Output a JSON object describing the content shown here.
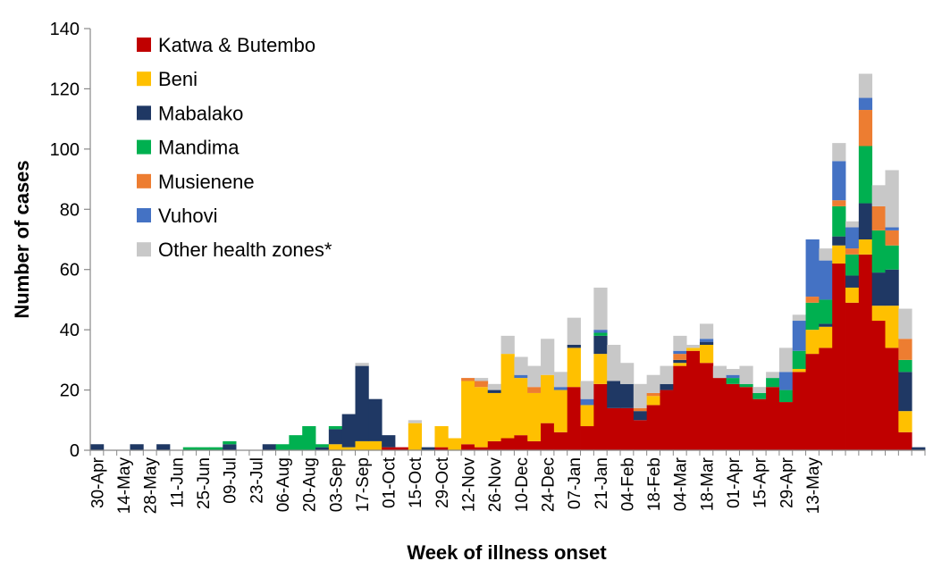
{
  "chart_data": {
    "type": "bar",
    "stacked": true,
    "xlabel": "Week of illness onset",
    "ylabel": "Number of cases",
    "ylim": [
      0,
      140
    ],
    "yticks": [
      0,
      20,
      40,
      60,
      80,
      100,
      120,
      140
    ],
    "grid": false,
    "legend_position": "top-left",
    "x_tick_labels": [
      "30-Apr",
      "14-May",
      "28-May",
      "11-Jun",
      "25-Jun",
      "09-Jul",
      "23-Jul",
      "06-Aug",
      "20-Aug",
      "03-Sep",
      "17-Sep",
      "01-Oct",
      "15-Oct",
      "29-Oct",
      "12-Nov",
      "26-Nov",
      "10-Dec",
      "24-Dec",
      "07-Jan",
      "21-Jan",
      "04-Feb",
      "18-Feb",
      "04-Mar",
      "18-Mar",
      "01-Apr",
      "15-Apr",
      "29-Apr",
      "13-May"
    ],
    "series": [
      {
        "name": "Katwa & Butembo",
        "color": "#c00000",
        "values": [
          0,
          0,
          0,
          0,
          0,
          0,
          0,
          0,
          0,
          0,
          0,
          0,
          0,
          0,
          0,
          0,
          0,
          0,
          0,
          0,
          0,
          0,
          1,
          1,
          0,
          0,
          1,
          0,
          2,
          1,
          3,
          4,
          5,
          3,
          9,
          6,
          21,
          8,
          22,
          14,
          14,
          10,
          15,
          20,
          28,
          33,
          29,
          24,
          22,
          21,
          17,
          21,
          16,
          26,
          32,
          34,
          62,
          49,
          65,
          43,
          34,
          6,
          0
        ]
      },
      {
        "name": "Beni",
        "color": "#ffc000",
        "values": [
          0,
          0,
          0,
          0,
          0,
          0,
          0,
          0,
          0,
          0,
          0,
          0,
          0,
          0,
          0,
          0,
          0,
          0,
          2,
          1,
          3,
          3,
          0,
          0,
          9,
          0,
          7,
          4,
          21,
          20,
          16,
          28,
          19,
          16,
          16,
          14,
          13,
          7,
          10,
          0,
          0,
          0,
          3,
          0,
          1,
          1,
          6,
          0,
          0,
          0,
          0,
          0,
          0,
          1,
          8,
          7,
          6,
          5,
          5,
          5,
          14,
          7,
          0
        ]
      },
      {
        "name": "Mabalako",
        "color": "#1f3864",
        "values": [
          2,
          0,
          0,
          2,
          0,
          2,
          0,
          0,
          0,
          0,
          2,
          0,
          0,
          2,
          0,
          0,
          0,
          1,
          5,
          11,
          25,
          14,
          4,
          0,
          0,
          1,
          0,
          0,
          0,
          0,
          1,
          0,
          0,
          0,
          0,
          0,
          1,
          0,
          6,
          9,
          8,
          3,
          0,
          2,
          1,
          0,
          1,
          0,
          0,
          0,
          0,
          0,
          0,
          0,
          0,
          1,
          3,
          4,
          12,
          11,
          12,
          13,
          1
        ]
      },
      {
        "name": "Mandima",
        "color": "#00b050",
        "values": [
          0,
          0,
          0,
          0,
          0,
          0,
          0,
          1,
          1,
          1,
          1,
          0,
          0,
          0,
          2,
          5,
          8,
          1,
          1,
          0,
          0,
          0,
          0,
          0,
          0,
          0,
          0,
          0,
          0,
          0,
          0,
          0,
          0,
          0,
          0,
          0,
          0,
          0,
          1,
          0,
          0,
          0,
          0,
          0,
          0,
          0,
          0,
          0,
          2,
          1,
          2,
          3,
          4,
          6,
          9,
          8,
          10,
          7,
          19,
          14,
          8,
          4,
          0
        ]
      },
      {
        "name": "Musienene",
        "color": "#ed7d31",
        "values": [
          0,
          0,
          0,
          0,
          0,
          0,
          0,
          0,
          0,
          0,
          0,
          0,
          0,
          0,
          0,
          0,
          0,
          0,
          0,
          0,
          0,
          0,
          0,
          0,
          0,
          0,
          0,
          0,
          1,
          2,
          0,
          0,
          0,
          2,
          0,
          0,
          0,
          0,
          0,
          0,
          0,
          1,
          1,
          0,
          2,
          0,
          0,
          0,
          0,
          0,
          0,
          0,
          0,
          0,
          2,
          0,
          2,
          2,
          12,
          8,
          5,
          7,
          0
        ]
      },
      {
        "name": "Vuhovi",
        "color": "#4472c4",
        "values": [
          0,
          0,
          0,
          0,
          0,
          0,
          0,
          0,
          0,
          0,
          0,
          0,
          0,
          0,
          0,
          0,
          0,
          0,
          0,
          0,
          0,
          0,
          0,
          0,
          0,
          0,
          0,
          0,
          0,
          0,
          0,
          0,
          1,
          0,
          0,
          1,
          0,
          2,
          1,
          0,
          0,
          0,
          0,
          0,
          1,
          0,
          1,
          0,
          1,
          0,
          0,
          0,
          6,
          10,
          19,
          13,
          13,
          7,
          4,
          0,
          1,
          0,
          0
        ]
      },
      {
        "name": "Other health zones*",
        "color": "#c8c8c8",
        "values": [
          0,
          0,
          0,
          0,
          0,
          0,
          0,
          0,
          0,
          0,
          0,
          0,
          0,
          0,
          0,
          0,
          0,
          0,
          0,
          0,
          1,
          0,
          0,
          0,
          1,
          0,
          0,
          0,
          0,
          1,
          2,
          6,
          6,
          7,
          12,
          5,
          9,
          6,
          14,
          12,
          7,
          8,
          6,
          6,
          5,
          1,
          5,
          4,
          2,
          6,
          2,
          2,
          8,
          2,
          0,
          4,
          6,
          2,
          8,
          7,
          19,
          10,
          0
        ]
      }
    ]
  }
}
